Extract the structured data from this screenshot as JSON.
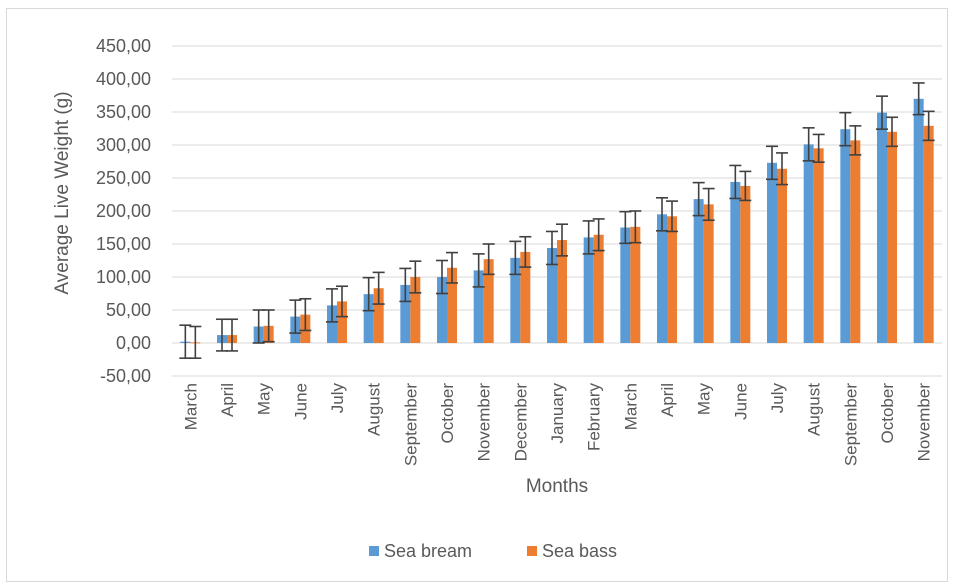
{
  "chart_data": {
    "type": "bar",
    "title": "",
    "xlabel": "Months",
    "ylabel": "Average Live Weight (g)",
    "ylim": [
      -50,
      450
    ],
    "ytick_step": 50,
    "ytick_labels": [
      "-50,00",
      "0,00",
      "50,00",
      "100,00",
      "150,00",
      "200,00",
      "250,00",
      "300,00",
      "350,00",
      "400,00",
      "450,00"
    ],
    "grid": true,
    "legend_position": "bottom",
    "categories": [
      "March",
      "April",
      "May",
      "June",
      "July",
      "August",
      "September",
      "October",
      "November",
      "December",
      "January",
      "February",
      "March",
      "April",
      "May",
      "June",
      "July",
      "August",
      "September",
      "October",
      "November"
    ],
    "series": [
      {
        "name": "Sea bream",
        "color": "#5b9bd5",
        "values": [
          2,
          12,
          25,
          40,
          57,
          74,
          88,
          100,
          110,
          129,
          144,
          160,
          175,
          195,
          218,
          244,
          273,
          301,
          324,
          349,
          370
        ],
        "error": [
          25,
          24,
          25,
          25,
          25,
          25,
          25,
          25,
          25,
          25,
          25,
          25,
          24,
          25,
          25,
          25,
          25,
          25,
          25,
          25,
          24
        ]
      },
      {
        "name": "Sea bass",
        "color": "#ed7d31",
        "values": [
          1,
          12,
          26,
          43,
          63,
          83,
          100,
          114,
          127,
          138,
          156,
          164,
          176,
          192,
          210,
          238,
          264,
          295,
          307,
          320,
          329
        ],
        "error": [
          24,
          24,
          24,
          24,
          23,
          24,
          24,
          23,
          23,
          23,
          24,
          24,
          24,
          23,
          24,
          22,
          24,
          21,
          22,
          22,
          22
        ]
      }
    ]
  }
}
